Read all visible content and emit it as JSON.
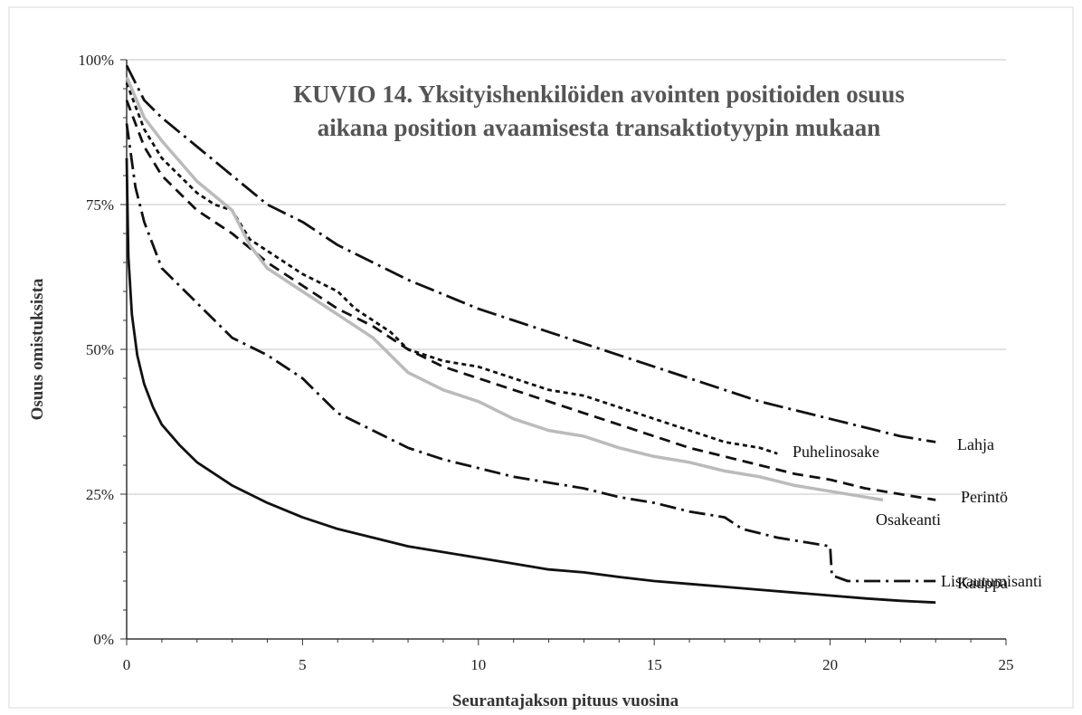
{
  "chart_data": {
    "type": "line",
    "title_lines": [
      "KUVIO 14. Yksityishenkilöiden avointen positioiden osuus",
      "aikana position avaamisesta transaktiotyypin mukaan"
    ],
    "xlabel": "Seurantajakson pituus vuosina",
    "ylabel": "Osuus omistuksista",
    "xlim": [
      0,
      25
    ],
    "ylim": [
      0,
      100
    ],
    "x_ticks": [
      "0",
      "5",
      "10",
      "15",
      "20",
      "25"
    ],
    "y_ticks": [
      "0%",
      "25%",
      "50%",
      "75%",
      "100%"
    ],
    "y_tick_values": [
      0,
      25,
      50,
      75,
      100
    ],
    "x_tick_values": [
      0,
      5,
      10,
      15,
      20,
      25
    ],
    "grid": "horizontal",
    "series": [
      {
        "name": "Lahja",
        "dash": "dashdot-long",
        "color": "#111111",
        "points": [
          [
            0,
            99
          ],
          [
            0.5,
            93
          ],
          [
            1,
            90
          ],
          [
            2,
            85
          ],
          [
            3,
            80
          ],
          [
            4,
            75
          ],
          [
            5,
            72
          ],
          [
            6,
            68
          ],
          [
            7,
            65
          ],
          [
            8,
            62
          ],
          [
            9,
            59.5
          ],
          [
            10,
            57
          ],
          [
            11,
            55
          ],
          [
            12,
            53
          ],
          [
            13,
            51
          ],
          [
            14,
            49
          ],
          [
            15,
            47
          ],
          [
            16,
            45
          ],
          [
            17,
            43
          ],
          [
            18,
            41
          ],
          [
            19,
            39.5
          ],
          [
            20,
            38
          ],
          [
            21,
            36.5
          ],
          [
            22,
            35
          ],
          [
            23,
            34
          ]
        ]
      },
      {
        "name": "Puhelinosake",
        "dash": "dotted",
        "color": "#111111",
        "points": [
          [
            0,
            96
          ],
          [
            0.5,
            88
          ],
          [
            1,
            83
          ],
          [
            1.5,
            80
          ],
          [
            2,
            77
          ],
          [
            2.5,
            75
          ],
          [
            3,
            74
          ],
          [
            3.5,
            69
          ],
          [
            4,
            67
          ],
          [
            4.5,
            65
          ],
          [
            5,
            63
          ],
          [
            6,
            60
          ],
          [
            6.5,
            57
          ],
          [
            7,
            55
          ],
          [
            7.5,
            53
          ],
          [
            8,
            50
          ],
          [
            9,
            48
          ],
          [
            10,
            47
          ],
          [
            11,
            45
          ],
          [
            12,
            43
          ],
          [
            13,
            42
          ],
          [
            14,
            40
          ],
          [
            15,
            38
          ],
          [
            16,
            36
          ],
          [
            17,
            34
          ],
          [
            18,
            33
          ],
          [
            18.5,
            32
          ]
        ]
      },
      {
        "name": "Perintö",
        "dash": "dashed",
        "color": "#111111",
        "points": [
          [
            0,
            93
          ],
          [
            0.5,
            85
          ],
          [
            1,
            80
          ],
          [
            1.5,
            77
          ],
          [
            2,
            74
          ],
          [
            3,
            70
          ],
          [
            4,
            65
          ],
          [
            5,
            61
          ],
          [
            6,
            57
          ],
          [
            7,
            54
          ],
          [
            8,
            50
          ],
          [
            9,
            47
          ],
          [
            10,
            45
          ],
          [
            11,
            43
          ],
          [
            12,
            41
          ],
          [
            13,
            39
          ],
          [
            14,
            37
          ],
          [
            15,
            35
          ],
          [
            16,
            33
          ],
          [
            17,
            31.5
          ],
          [
            18,
            30
          ],
          [
            19,
            28.5
          ],
          [
            20,
            27.5
          ],
          [
            21,
            26
          ],
          [
            22,
            25
          ],
          [
            23,
            24
          ]
        ]
      },
      {
        "name": "Osakeanti",
        "dash": "solid",
        "color": "#bbbbbb",
        "points": [
          [
            0,
            97
          ],
          [
            0.5,
            90
          ],
          [
            1,
            86
          ],
          [
            2,
            79
          ],
          [
            3,
            74
          ],
          [
            3.5,
            68
          ],
          [
            4,
            64
          ],
          [
            5,
            60
          ],
          [
            6,
            56
          ],
          [
            7,
            52
          ],
          [
            8,
            46
          ],
          [
            9,
            43
          ],
          [
            10,
            41
          ],
          [
            11,
            38
          ],
          [
            12,
            36
          ],
          [
            13,
            35
          ],
          [
            14,
            33
          ],
          [
            15,
            31.5
          ],
          [
            16,
            30.5
          ],
          [
            17,
            29
          ],
          [
            18,
            28
          ],
          [
            19,
            26.5
          ],
          [
            20,
            25.5
          ],
          [
            21,
            24.5
          ],
          [
            21.5,
            24
          ]
        ]
      },
      {
        "name": "Listautumisanti",
        "dash": "dashdot",
        "color": "#111111",
        "points": [
          [
            0,
            89
          ],
          [
            0.25,
            78
          ],
          [
            0.5,
            72
          ],
          [
            1,
            64
          ],
          [
            2,
            58
          ],
          [
            3,
            52
          ],
          [
            4,
            49
          ],
          [
            5,
            45
          ],
          [
            5.5,
            42
          ],
          [
            6,
            39
          ],
          [
            7,
            36
          ],
          [
            8,
            33
          ],
          [
            9,
            31
          ],
          [
            10,
            29.5
          ],
          [
            11,
            28
          ],
          [
            12,
            27
          ],
          [
            13,
            26
          ],
          [
            14,
            24.5
          ],
          [
            15,
            23.5
          ],
          [
            16,
            22
          ],
          [
            17,
            21
          ],
          [
            17.5,
            19
          ],
          [
            18.5,
            17.5
          ],
          [
            19.5,
            16.5
          ],
          [
            20,
            16
          ],
          [
            20.05,
            11
          ],
          [
            20.5,
            10
          ],
          [
            21,
            10
          ],
          [
            23,
            10
          ]
        ]
      },
      {
        "name": "Kauppa",
        "dash": "solid",
        "color": "#111111",
        "points": [
          [
            0,
            83
          ],
          [
            0.05,
            66
          ],
          [
            0.15,
            56
          ],
          [
            0.3,
            49
          ],
          [
            0.5,
            44
          ],
          [
            0.75,
            40
          ],
          [
            1,
            37
          ],
          [
            1.5,
            33.5
          ],
          [
            2,
            30.5
          ],
          [
            3,
            26.5
          ],
          [
            4,
            23.5
          ],
          [
            5,
            21
          ],
          [
            6,
            19
          ],
          [
            7,
            17.5
          ],
          [
            8,
            16
          ],
          [
            9,
            15
          ],
          [
            10,
            14
          ],
          [
            11,
            13
          ],
          [
            12,
            12
          ],
          [
            13,
            11.5
          ],
          [
            14,
            10.7
          ],
          [
            15,
            10
          ],
          [
            16,
            9.5
          ],
          [
            17,
            9
          ],
          [
            18,
            8.5
          ],
          [
            19,
            8
          ],
          [
            20,
            7.5
          ],
          [
            21,
            7
          ],
          [
            22,
            6.6
          ],
          [
            23,
            6.3
          ]
        ]
      }
    ]
  }
}
